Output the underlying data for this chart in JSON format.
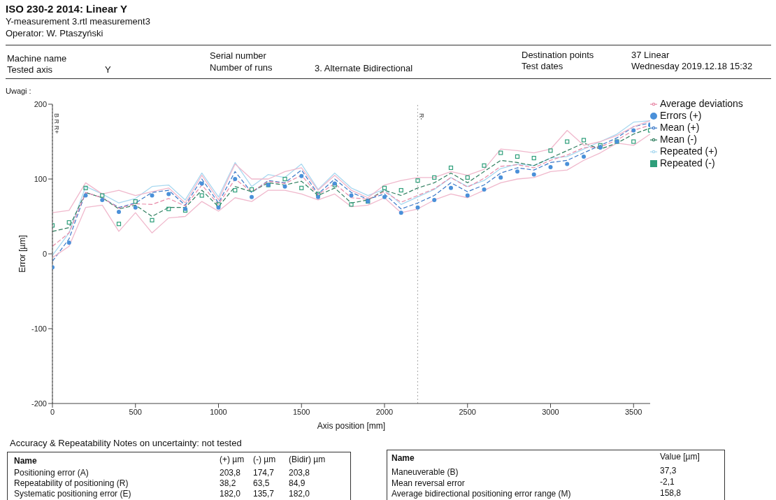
{
  "chart_data": {
    "type": "line",
    "title": "ISO 230-2 2014: Linear Y",
    "subtitle": "Y-measurement 3.rtl measurement3",
    "xlabel": "Axis position [mm]",
    "ylabel": "Error [µm]",
    "annotations": [
      "Operator: W. Ptaszyński",
      "Machine name",
      "Tested axis",
      "Y",
      "Serial number",
      "Number of runs",
      "3. Alternate Bidirectional",
      "Destination points",
      "37 Linear",
      "Test dates",
      "Wednesday 2019.12.18 15:32",
      "Uwagi :",
      "Accuracy & Repeatability Notes on uncertainty: not tested",
      "Name",
      "(+) µm",
      "(-) µm",
      "(Bidir) µm",
      "Positioning error (A)",
      "203,8",
      "174,7",
      "203,8",
      "Repeatability of positioning (R)",
      "38,2",
      "63,5",
      "84,9",
      "Systematic positioning error (E)",
      "182,0",
      "135,7",
      "182,0",
      "Name",
      "Value [µm]",
      "Maneuverable (B)",
      "37,3",
      "Mean reversal error",
      "-2,1",
      "Average bidirectional positioning error range (M)",
      "158,8"
    ],
    "x": [
      0,
      100,
      200,
      300,
      400,
      500,
      600,
      700,
      800,
      900,
      1000,
      1100,
      1200,
      1300,
      1400,
      1500,
      1600,
      1700,
      1800,
      1900,
      2000,
      2100,
      2200,
      2300,
      2400,
      2500,
      2600,
      2700,
      2800,
      2900,
      3000,
      3100,
      3200,
      3300,
      3400,
      3500,
      3600
    ],
    "series": [
      {
        "name": "Repeated (+)",
        "color": "#a8d8f0",
        "line_style": "solid",
        "values": [
          -2,
          28,
          90,
          80,
          68,
          74,
          90,
          92,
          72,
          108,
          76,
          122,
          90,
          106,
          102,
          120,
          86,
          108,
          88,
          78,
          86,
          66,
          76,
          86,
          102,
          90,
          98,
          114,
          120,
          118,
          128,
          130,
          140,
          150,
          160,
          176,
          178
        ]
      },
      {
        "name": "Errors (+)",
        "type": "scatter",
        "color": "#4a90d9",
        "marker": "circle",
        "values": [
          -18,
          15,
          78,
          72,
          56,
          62,
          78,
          80,
          60,
          94,
          62,
          100,
          76,
          92,
          90,
          104,
          76,
          94,
          78,
          70,
          76,
          55,
          62,
          72,
          88,
          78,
          86,
          102,
          110,
          106,
          116,
          120,
          130,
          142,
          150,
          165,
          172
        ]
      },
      {
        "name": "Mean (+)",
        "color": "#3a78c8",
        "line_style": "dashed",
        "values": [
          -10,
          20,
          82,
          75,
          62,
          68,
          82,
          85,
          65,
          100,
          68,
          110,
          82,
          98,
          95,
          112,
          80,
          100,
          82,
          73,
          80,
          60,
          68,
          78,
          95,
          83,
          92,
          108,
          115,
          112,
          122,
          125,
          135,
          145,
          155,
          170,
          175
        ]
      },
      {
        "name": "Repeated (-)",
        "type": "scatter",
        "color": "#2e9e7a",
        "marker": "square",
        "values": [
          38,
          42,
          88,
          78,
          40,
          70,
          45,
          60,
          58,
          78,
          66,
          85,
          86,
          92,
          100,
          88,
          80,
          92,
          66,
          70,
          88,
          85,
          98,
          102,
          115,
          102,
          118,
          135,
          130,
          128,
          138,
          150,
          152,
          145,
          150,
          150,
          165
        ]
      },
      {
        "name": "Mean (-)",
        "color": "#2e7d5e",
        "line_style": "dashed",
        "values": [
          30,
          35,
          82,
          75,
          60,
          65,
          50,
          62,
          62,
          85,
          63,
          90,
          83,
          95,
          92,
          97,
          78,
          88,
          68,
          72,
          85,
          78,
          88,
          95,
          108,
          95,
          110,
          125,
          122,
          118,
          128,
          138,
          148,
          140,
          148,
          160,
          168
        ]
      },
      {
        "name": "Average deviations",
        "color": "#e88aa8",
        "line_style": "dashed",
        "values": [
          10,
          28,
          82,
          75,
          61,
          67,
          66,
          74,
          64,
          92,
          66,
          100,
          83,
          97,
          94,
          105,
          79,
          94,
          75,
          73,
          83,
          69,
          78,
          87,
          102,
          89,
          101,
          117,
          119,
          115,
          125,
          132,
          142,
          143,
          152,
          165,
          172
        ]
      },
      {
        "color": "#f0b8cc",
        "line_style": "solid",
        "values": [
          55,
          58,
          95,
          80,
          85,
          78,
          83,
          88,
          68,
          105,
          72,
          120,
          100,
          100,
          110,
          115,
          85,
          105,
          85,
          75,
          92,
          98,
          102,
          102,
          110,
          105,
          113,
          140,
          138,
          135,
          140,
          165,
          145,
          150,
          158,
          170,
          178
        ]
      },
      {
        "color": "#f0b8cc",
        "line_style": "solid",
        "values": [
          -5,
          10,
          62,
          65,
          30,
          55,
          28,
          48,
          50,
          70,
          57,
          75,
          70,
          85,
          85,
          80,
          72,
          80,
          63,
          65,
          75,
          55,
          60,
          72,
          80,
          75,
          85,
          95,
          100,
          102,
          110,
          112,
          125,
          135,
          148,
          145,
          160
        ]
      }
    ],
    "xlim": [
      0,
      3600
    ],
    "xticks": [
      0,
      500,
      1000,
      1500,
      2000,
      2500,
      3000,
      3500
    ],
    "ylim": [
      -200,
      200
    ],
    "yticks": [
      -200,
      -100,
      0,
      100,
      200
    ],
    "ref_lines": [
      {
        "axis": "x",
        "value": 0,
        "label": "B R R+",
        "color": "#888888",
        "line_style": "dotted"
      },
      {
        "axis": "x",
        "value": 2200,
        "label": "R-",
        "color": "#aaaaaa",
        "line_style": "dotted"
      }
    ],
    "grid": false,
    "legend": "top right"
  }
}
